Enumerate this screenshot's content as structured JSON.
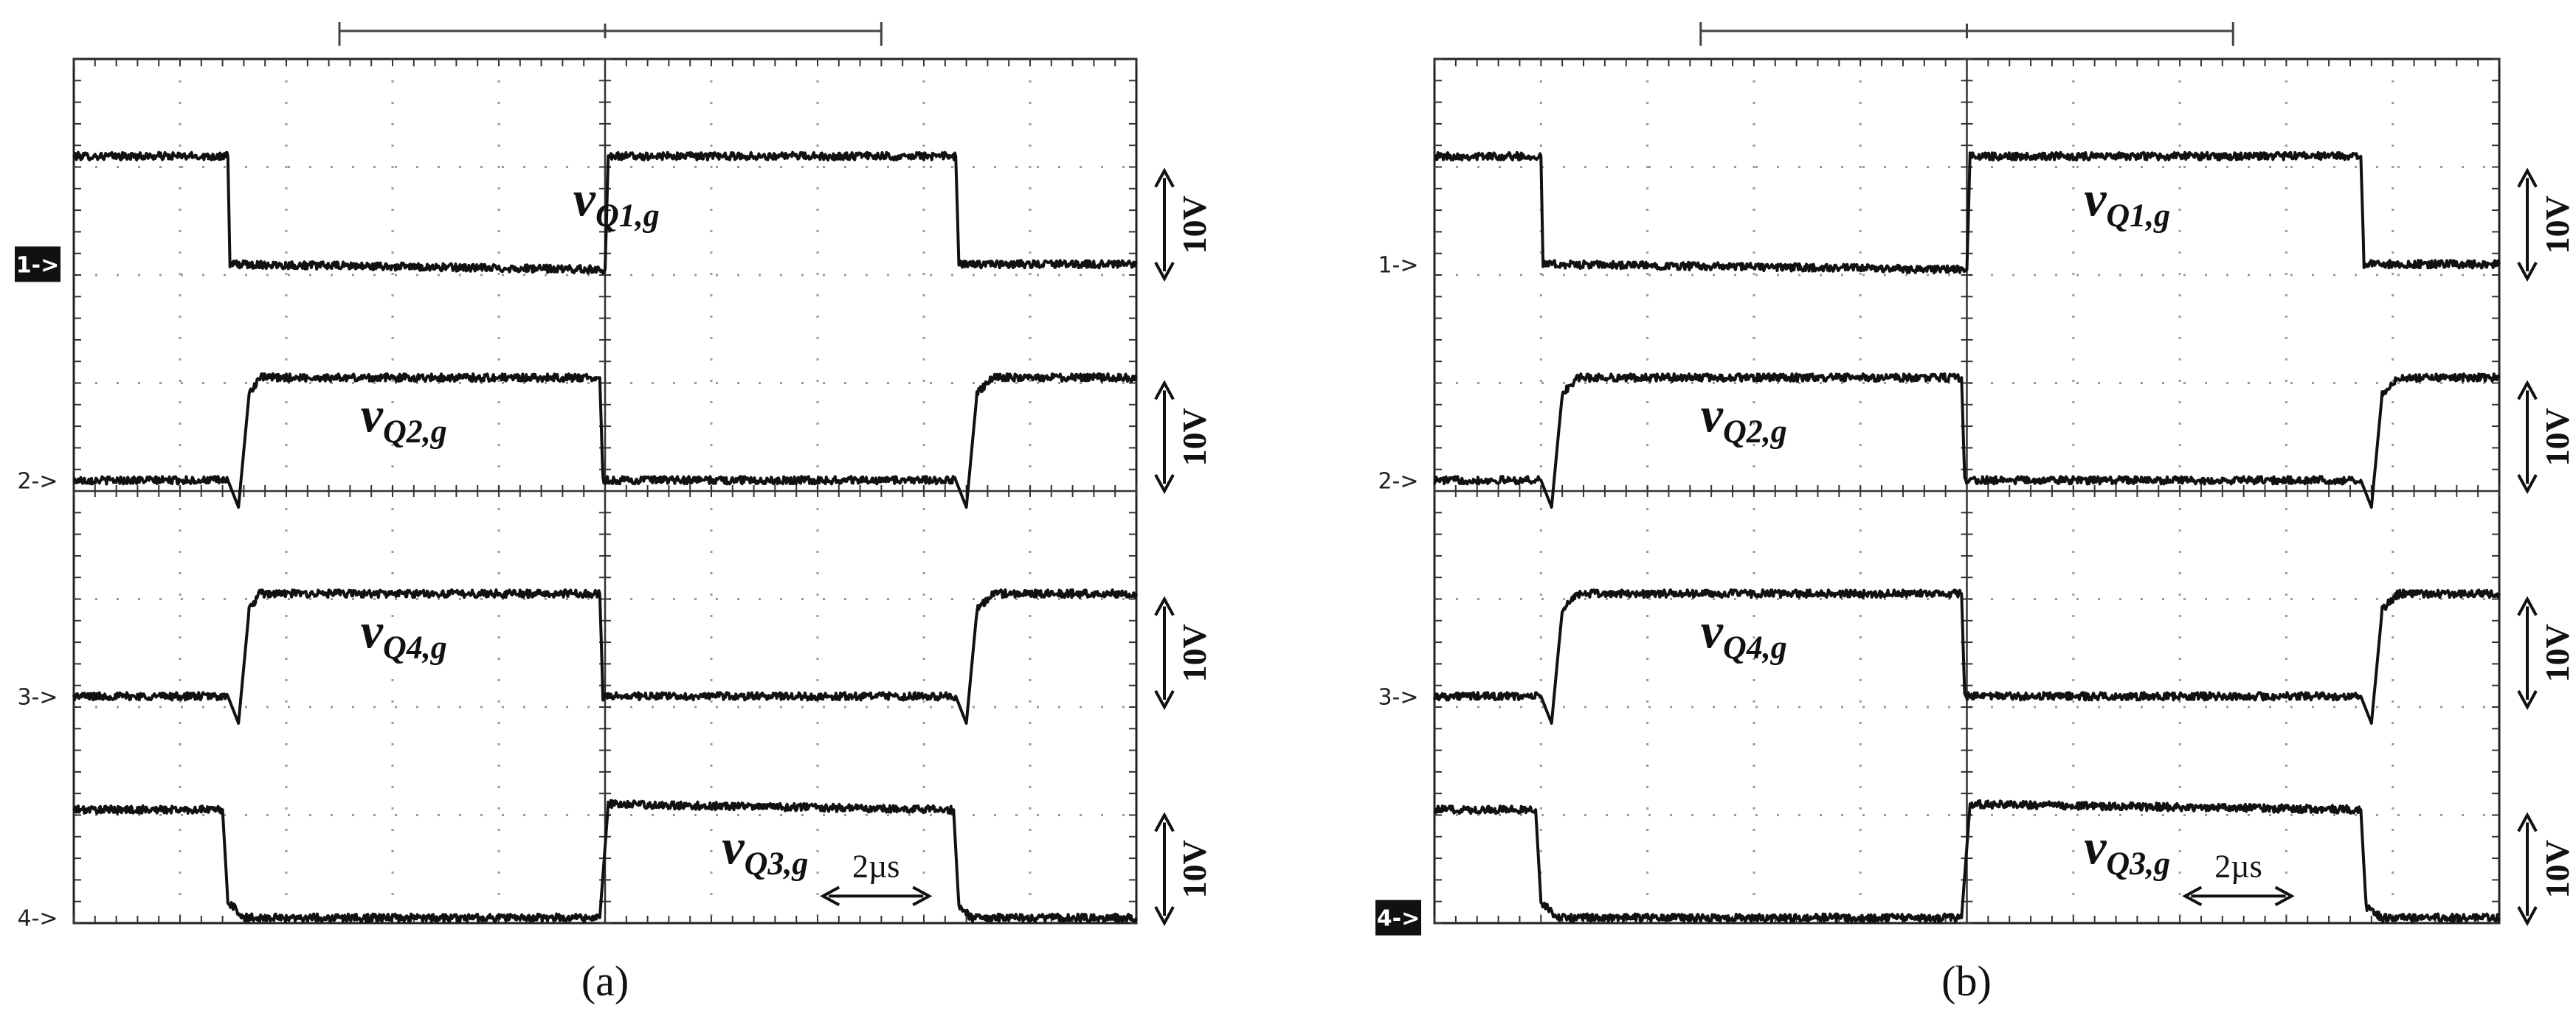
{
  "chart_data": [
    {
      "type": "line",
      "caption": "(a)",
      "x_scale_label": "2µs",
      "grid": true,
      "x_divisions": 10,
      "y_divisions": 8,
      "highlighted_channel": 1,
      "x_units": "divisions",
      "y_units": "divisions",
      "series": [
        {
          "name": "v_{Q1,g}",
          "label_main": "v",
          "label_sub": "Q1,g",
          "marker": "1->",
          "scale_label": "10V",
          "x": [
            0,
            1.45,
            1.47,
            5.0,
            5.03,
            8.3,
            8.33,
            10
          ],
          "y": [
            7.1,
            7.1,
            6.1,
            6.05,
            7.1,
            7.1,
            6.1,
            6.1
          ]
        },
        {
          "name": "v_{Q2,g}",
          "label_main": "v",
          "label_sub": "Q2,g",
          "marker": "2->",
          "scale_label": "10V",
          "x": [
            0,
            1.45,
            1.55,
            1.65,
            1.75,
            4.95,
            4.98,
            8.3,
            8.4,
            8.5,
            8.65,
            10
          ],
          "y": [
            4.1,
            4.1,
            3.85,
            4.9,
            5.05,
            5.05,
            4.1,
            4.1,
            3.85,
            4.9,
            5.05,
            5.05
          ]
        },
        {
          "name": "v_{Q4,g}",
          "label_main": "v",
          "label_sub": "Q4,g",
          "marker": "3->",
          "scale_label": "10V",
          "x": [
            0,
            1.45,
            1.55,
            1.65,
            1.75,
            4.95,
            4.98,
            8.3,
            8.4,
            8.5,
            8.65,
            10
          ],
          "y": [
            2.1,
            2.1,
            1.85,
            2.9,
            3.05,
            3.05,
            2.1,
            2.1,
            1.85,
            2.9,
            3.05,
            3.05
          ]
        },
        {
          "name": "v_{Q3,g}",
          "label_main": "v",
          "label_sub": "Q3,g",
          "marker": "4->",
          "scale_label": "10V",
          "x": [
            0,
            1.4,
            1.45,
            1.6,
            4.95,
            5.03,
            8.28,
            8.33,
            8.45,
            10
          ],
          "y": [
            1.05,
            1.05,
            0.2,
            0.05,
            0.05,
            1.1,
            1.05,
            0.15,
            0.05,
            0.05
          ]
        }
      ]
    },
    {
      "type": "line",
      "caption": "(b)",
      "x_scale_label": "2µs",
      "grid": true,
      "x_divisions": 10,
      "y_divisions": 8,
      "highlighted_channel": 4,
      "x_units": "divisions",
      "y_units": "divisions",
      "series": [
        {
          "name": "v_{Q1,g}",
          "label_main": "v",
          "label_sub": "Q1,g",
          "marker": "1->",
          "scale_label": "10V",
          "x": [
            0,
            1.0,
            1.02,
            5.0,
            5.03,
            8.7,
            8.73,
            10
          ],
          "y": [
            7.1,
            7.1,
            6.1,
            6.05,
            7.1,
            7.1,
            6.1,
            6.1
          ]
        },
        {
          "name": "v_{Q2,g}",
          "label_main": "v",
          "label_sub": "Q2,g",
          "marker": "2->",
          "scale_label": "10V",
          "x": [
            0,
            1.0,
            1.1,
            1.2,
            1.35,
            4.95,
            4.98,
            8.7,
            8.8,
            8.9,
            9.05,
            10
          ],
          "y": [
            4.1,
            4.1,
            3.85,
            4.9,
            5.05,
            5.05,
            4.1,
            4.1,
            3.85,
            4.9,
            5.05,
            5.05
          ]
        },
        {
          "name": "v_{Q4,g}",
          "label_main": "v",
          "label_sub": "Q4,g",
          "marker": "3->",
          "scale_label": "10V",
          "x": [
            0,
            1.0,
            1.1,
            1.2,
            1.35,
            4.95,
            4.98,
            8.7,
            8.8,
            8.9,
            9.05,
            10
          ],
          "y": [
            2.1,
            2.1,
            1.85,
            2.9,
            3.05,
            3.05,
            2.1,
            2.1,
            1.85,
            2.9,
            3.05,
            3.05
          ]
        },
        {
          "name": "v_{Q3,g}",
          "label_main": "v",
          "label_sub": "Q3,g",
          "marker": "4->",
          "scale_label": "10V",
          "x": [
            0,
            0.95,
            1.0,
            1.15,
            4.95,
            5.03,
            8.7,
            8.75,
            8.9,
            10
          ],
          "y": [
            1.05,
            1.05,
            0.2,
            0.05,
            0.05,
            1.1,
            1.05,
            0.15,
            0.05,
            0.05
          ]
        }
      ]
    }
  ]
}
